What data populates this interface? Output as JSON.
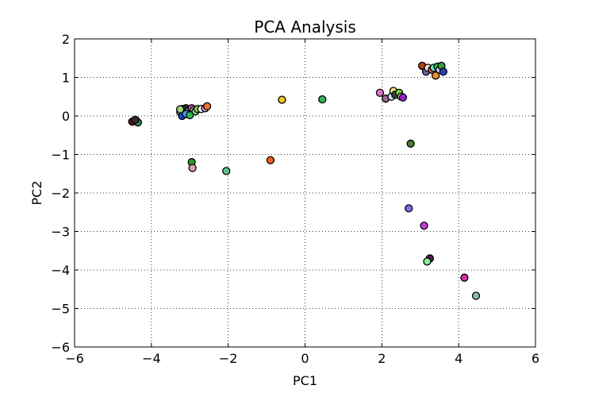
{
  "chart_data": {
    "type": "scatter",
    "title": "PCA Analysis",
    "xlabel": "PC1",
    "ylabel": "PC2",
    "xlim": [
      -6,
      6
    ],
    "ylim": [
      -6,
      2
    ],
    "xticks": [
      -6,
      -4,
      -2,
      0,
      2,
      4,
      6
    ],
    "yticks": [
      -6,
      -5,
      -4,
      -3,
      -2,
      -1,
      0,
      1,
      2
    ],
    "xtick_labels": [
      "−6",
      "−4",
      "−2",
      "0",
      "2",
      "4",
      "6"
    ],
    "ytick_labels": [
      "−6",
      "−5",
      "−4",
      "−3",
      "−2",
      "−1",
      "0",
      "1",
      "2"
    ],
    "grid": true,
    "points": [
      {
        "x": -4.5,
        "y": -0.15,
        "color": "#5a1a1a"
      },
      {
        "x": -4.4,
        "y": -0.12,
        "color": "#b03030"
      },
      {
        "x": -4.35,
        "y": -0.17,
        "color": "#2e8b57"
      },
      {
        "x": -4.42,
        "y": -0.1,
        "color": "#3a2a2a"
      },
      {
        "x": -3.25,
        "y": 0.1,
        "color": "#7cd05a"
      },
      {
        "x": -3.2,
        "y": 0.18,
        "color": "#44c040"
      },
      {
        "x": -3.15,
        "y": 0.15,
        "color": "#8fd070"
      },
      {
        "x": -3.1,
        "y": 0.2,
        "color": "#2a2a2a"
      },
      {
        "x": -3.05,
        "y": 0.12,
        "color": "#6ab04c"
      },
      {
        "x": -2.95,
        "y": 0.2,
        "color": "#d060d0"
      },
      {
        "x": -2.9,
        "y": 0.15,
        "color": "#e8a0c0"
      },
      {
        "x": -2.85,
        "y": 0.12,
        "color": "#90e090"
      },
      {
        "x": -2.8,
        "y": 0.18,
        "color": "#88c060"
      },
      {
        "x": -2.7,
        "y": 0.18,
        "color": "#f0f0f0"
      },
      {
        "x": -2.6,
        "y": 0.2,
        "color": "#d8a8d8"
      },
      {
        "x": -2.55,
        "y": 0.25,
        "color": "#f07030"
      },
      {
        "x": -3.2,
        "y": 0.0,
        "color": "#2040d0"
      },
      {
        "x": -3.1,
        "y": 0.05,
        "color": "#40a0e0"
      },
      {
        "x": -3.0,
        "y": 0.02,
        "color": "#30b060"
      },
      {
        "x": -3.25,
        "y": 0.17,
        "color": "#a0d080"
      },
      {
        "x": -2.95,
        "y": -1.2,
        "color": "#2a9a2a"
      },
      {
        "x": -2.93,
        "y": -1.35,
        "color": "#e0a0a0"
      },
      {
        "x": -2.05,
        "y": -1.43,
        "color": "#60c090"
      },
      {
        "x": -0.9,
        "y": -1.15,
        "color": "#f06020"
      },
      {
        "x": -0.6,
        "y": 0.42,
        "color": "#f0c020"
      },
      {
        "x": 0.45,
        "y": 0.43,
        "color": "#30b060"
      },
      {
        "x": 1.95,
        "y": 0.6,
        "color": "#e070c0"
      },
      {
        "x": 2.1,
        "y": 0.45,
        "color": "#9a6a8a"
      },
      {
        "x": 2.25,
        "y": 0.5,
        "color": "#c0e0f0"
      },
      {
        "x": 2.3,
        "y": 0.65,
        "color": "#e8e070"
      },
      {
        "x": 2.35,
        "y": 0.55,
        "color": "#404040"
      },
      {
        "x": 2.45,
        "y": 0.6,
        "color": "#70d040"
      },
      {
        "x": 2.5,
        "y": 0.5,
        "color": "#c0e0c0"
      },
      {
        "x": 2.55,
        "y": 0.48,
        "color": "#a020d0"
      },
      {
        "x": 2.75,
        "y": -0.72,
        "color": "#4a7a2a"
      },
      {
        "x": 3.05,
        "y": 1.3,
        "color": "#b04010"
      },
      {
        "x": 3.15,
        "y": 1.15,
        "color": "#7060a0"
      },
      {
        "x": 3.2,
        "y": 1.25,
        "color": "#f0e0d0"
      },
      {
        "x": 3.3,
        "y": 1.2,
        "color": "#e06060"
      },
      {
        "x": 3.35,
        "y": 1.25,
        "color": "#60e0c0"
      },
      {
        "x": 3.4,
        "y": 1.05,
        "color": "#f09030"
      },
      {
        "x": 3.45,
        "y": 1.28,
        "color": "#40c040"
      },
      {
        "x": 3.5,
        "y": 1.2,
        "color": "#c0c0ff"
      },
      {
        "x": 3.55,
        "y": 1.3,
        "color": "#30a040"
      },
      {
        "x": 3.6,
        "y": 1.15,
        "color": "#3040c0"
      },
      {
        "x": 2.7,
        "y": -2.4,
        "color": "#7a70e0"
      },
      {
        "x": 3.1,
        "y": -2.85,
        "color": "#c040d0"
      },
      {
        "x": 3.25,
        "y": -3.7,
        "color": "#5a1a5a"
      },
      {
        "x": 3.18,
        "y": -3.78,
        "color": "#80f0a0"
      },
      {
        "x": 4.15,
        "y": -4.2,
        "color": "#d030a0"
      },
      {
        "x": 4.45,
        "y": -4.67,
        "color": "#80c0a8"
      }
    ]
  }
}
